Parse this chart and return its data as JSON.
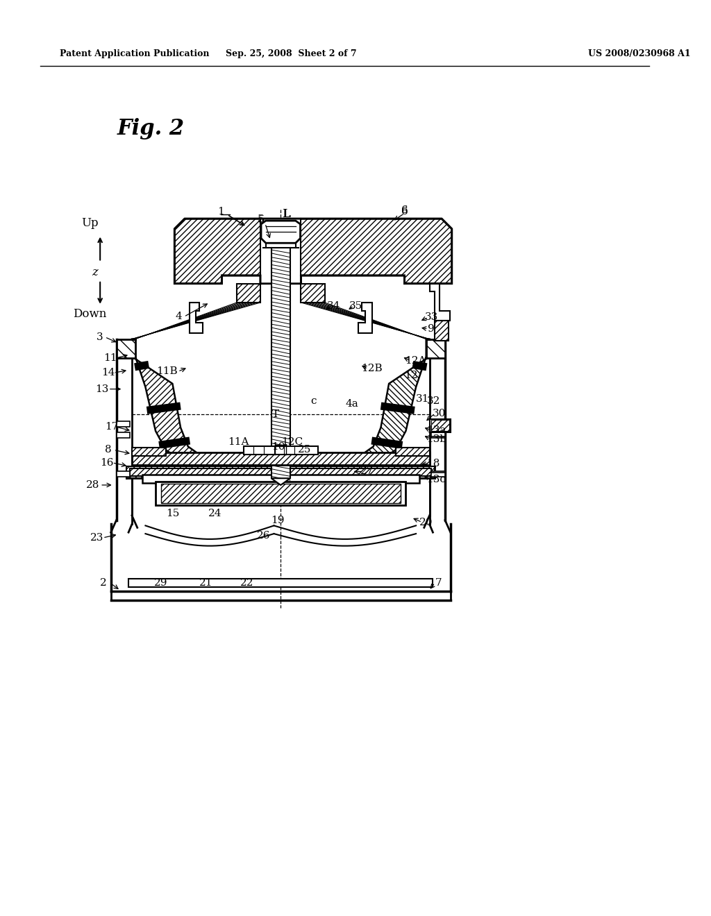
{
  "bg_color": "#ffffff",
  "header_left": "Patent Application Publication",
  "header_mid": "Sep. 25, 2008  Sheet 2 of 7",
  "header_right": "US 2008/0230968 A1",
  "fig_label": "Fig. 2"
}
